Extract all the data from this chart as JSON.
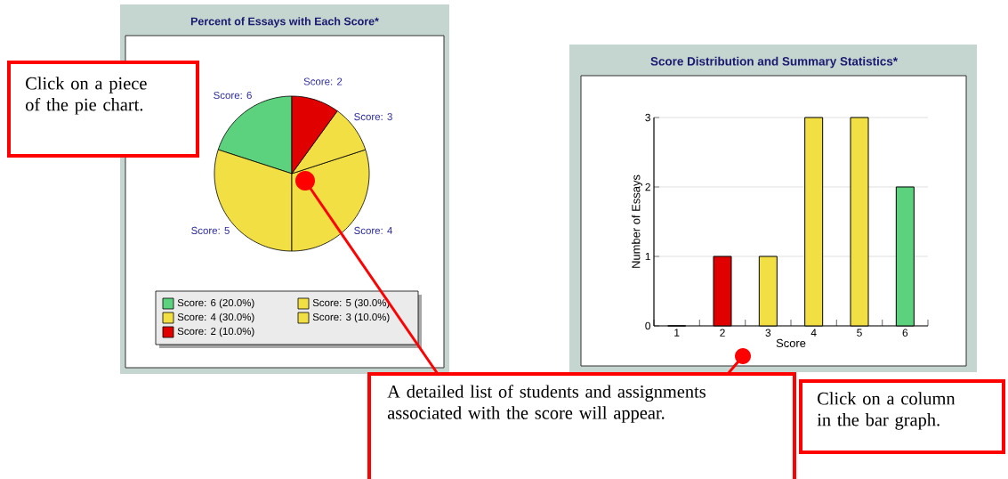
{
  "chart_data": [
    {
      "type": "pie",
      "title": "Percent of Essays with Each Score*",
      "categories": [
        "Score: 6",
        "Score: 5",
        "Score: 4",
        "Score: 3",
        "Score: 2"
      ],
      "values": [
        20,
        30,
        30,
        10,
        10
      ],
      "colors": [
        "#5cd27e",
        "#f2df44",
        "#f2df44",
        "#f2df44",
        "#e00000"
      ],
      "value_labels": [
        "(20.0%)",
        "(30.0%)",
        "(30.0%)",
        "(10.0%)",
        "(10.0%)"
      ],
      "legend": "bottom",
      "annotations": [
        "Click on a piece of the pie chart.",
        "A detailed list of students and assignments associated with the score will appear."
      ]
    },
    {
      "type": "bar",
      "title": "Score Distribution and Summary Statistics*",
      "categories": [
        "1",
        "2",
        "3",
        "4",
        "5",
        "6"
      ],
      "values": [
        0,
        1,
        1,
        3,
        3,
        2
      ],
      "colors": [
        "#f2df44",
        "#e00000",
        "#f2df44",
        "#f2df44",
        "#f2df44",
        "#5cd27e"
      ],
      "xlabel": "Score",
      "ylabel": "Number of Essays",
      "ylim": [
        0,
        3
      ],
      "yticks": [
        0,
        1,
        2,
        3
      ],
      "grid": "y",
      "annotations": [
        "Click on a column in the bar graph."
      ]
    }
  ]
}
